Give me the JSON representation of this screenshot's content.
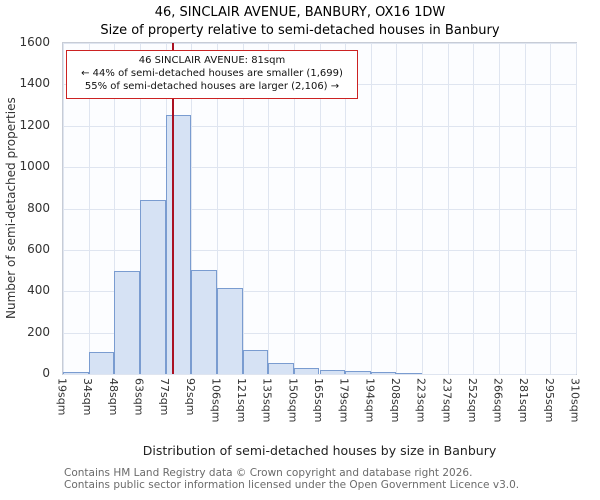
{
  "title": "46, SINCLAIR AVENUE, BANBURY, OX16 1DW",
  "subtitle": "Size of property relative to semi-detached houses in Banbury",
  "annotation": {
    "line1": "46 SINCLAIR AVENUE: 81sqm",
    "line2": "← 44% of semi-detached houses are smaller (1,699)",
    "line3": "55% of semi-detached houses are larger (2,106) →"
  },
  "footer": {
    "line1": "Contains HM Land Registry data © Crown copyright and database right 2026.",
    "line2": "Contains public sector information licensed under the Open Government Licence v3.0."
  },
  "chart_data": {
    "type": "bar",
    "title": "46, SINCLAIR AVENUE, BANBURY, OX16 1DW — Size of property relative to semi-detached houses in Banbury",
    "xlabel": "Distribution of semi-detached houses by size in Banbury",
    "ylabel": "Number of semi-detached properties",
    "ylim": [
      0,
      1600
    ],
    "yticks": [
      0,
      200,
      400,
      600,
      800,
      1000,
      1200,
      1400,
      1600
    ],
    "tick_values": [
      19,
      34,
      48,
      63,
      77,
      92,
      106,
      121,
      135,
      150,
      165,
      179,
      194,
      208,
      223,
      237,
      252,
      266,
      281,
      295,
      310
    ],
    "tick_labels": [
      "19sqm",
      "34sqm",
      "48sqm",
      "63sqm",
      "77sqm",
      "92sqm",
      "106sqm",
      "121sqm",
      "135sqm",
      "150sqm",
      "165sqm",
      "179sqm",
      "194sqm",
      "208sqm",
      "223sqm",
      "237sqm",
      "252sqm",
      "266sqm",
      "281sqm",
      "295sqm",
      "310sqm"
    ],
    "values": [
      10,
      105,
      500,
      840,
      1250,
      505,
      415,
      115,
      55,
      28,
      18,
      15,
      8,
      5,
      0,
      0,
      0,
      0,
      0,
      0
    ],
    "marker": {
      "value": 81,
      "label": "81sqm",
      "color": "#aa1122"
    },
    "smaller_count": 1699,
    "smaller_pct": 44,
    "larger_count": 2106,
    "larger_pct": 55,
    "grid": true,
    "colors": {
      "bar_fill": "#d6e2f4",
      "bar_edge": "#7a9cd0",
      "grid": "#dfe5f0",
      "axis_border": "#c7ccd6",
      "annotation_border": "#cc2222"
    }
  }
}
